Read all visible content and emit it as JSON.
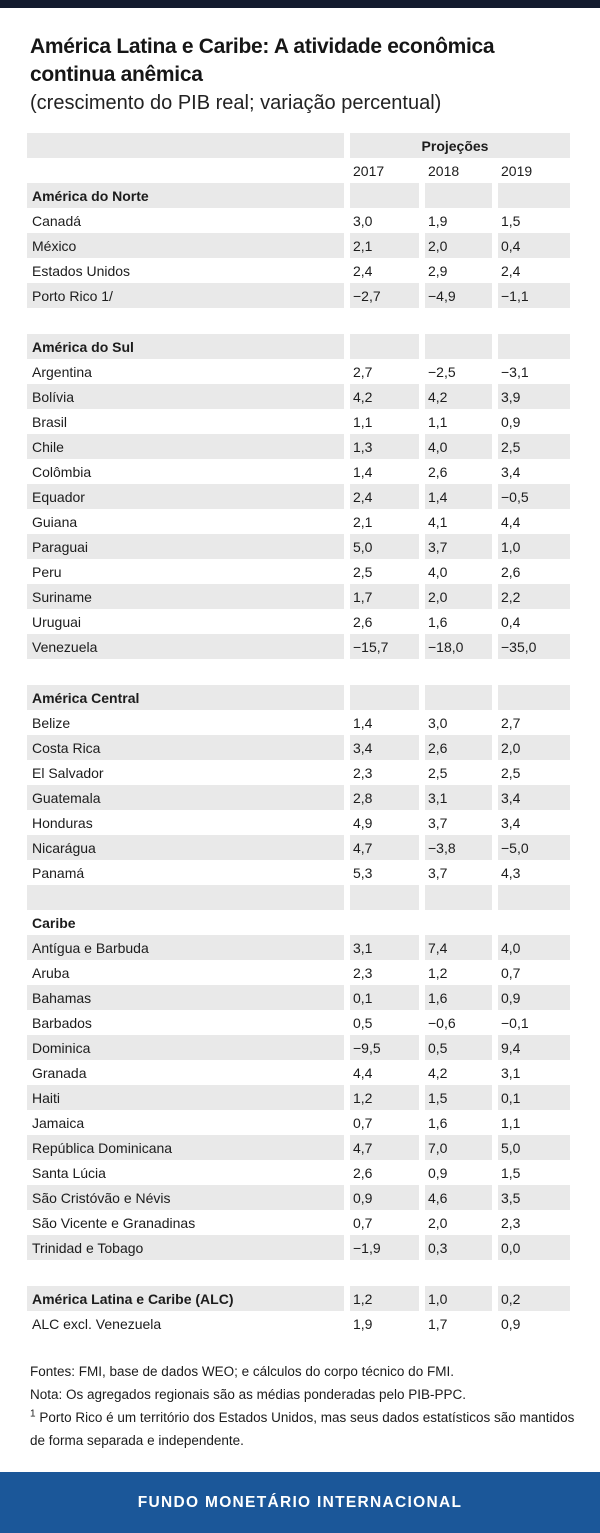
{
  "chart_data": {
    "type": "table",
    "title": "América Latina e Caribe: A atividade econômica continua anêmica",
    "title_lines": [
      "América Latina e Caribe: A atividade econômica",
      "continua anêmica"
    ],
    "subtitle": "(crescimento do PIB real; variação percentual)",
    "column_group_label": "Projeções",
    "columns": [
      "2017",
      "2018",
      "2019"
    ],
    "rows": [
      {
        "type": "section",
        "label": "América do Norte",
        "shade": "gray"
      },
      {
        "type": "row",
        "label": "Canadá",
        "values": [
          "3,0",
          "1,9",
          "1,5"
        ],
        "shade": "white"
      },
      {
        "type": "row",
        "label": "México",
        "values": [
          "2,1",
          "2,0",
          "0,4"
        ],
        "shade": "gray"
      },
      {
        "type": "row",
        "label": "Estados Unidos",
        "values": [
          "2,4",
          "2,9",
          "2,4"
        ],
        "shade": "white"
      },
      {
        "type": "row",
        "label": "Porto Rico 1/",
        "values": [
          "−2,7",
          "−4,9",
          "−1,1"
        ],
        "shade": "gray"
      },
      {
        "type": "spacer",
        "shade": "white"
      },
      {
        "type": "section",
        "label": "América do Sul",
        "shade": "gray"
      },
      {
        "type": "row",
        "label": "Argentina",
        "values": [
          "2,7",
          "−2,5",
          "−3,1"
        ],
        "shade": "white"
      },
      {
        "type": "row",
        "label": "Bolívia",
        "values": [
          "4,2",
          "4,2",
          "3,9"
        ],
        "shade": "gray"
      },
      {
        "type": "row",
        "label": "Brasil",
        "values": [
          "1,1",
          "1,1",
          "0,9"
        ],
        "shade": "white"
      },
      {
        "type": "row",
        "label": "Chile",
        "values": [
          "1,3",
          "4,0",
          "2,5"
        ],
        "shade": "gray"
      },
      {
        "type": "row",
        "label": "Colômbia",
        "values": [
          "1,4",
          "2,6",
          "3,4"
        ],
        "shade": "white"
      },
      {
        "type": "row",
        "label": "Equador",
        "values": [
          "2,4",
          "1,4",
          "−0,5"
        ],
        "shade": "gray"
      },
      {
        "type": "row",
        "label": "Guiana",
        "values": [
          "2,1",
          "4,1",
          "4,4"
        ],
        "shade": "white"
      },
      {
        "type": "row",
        "label": "Paraguai",
        "values": [
          "5,0",
          "3,7",
          "1,0"
        ],
        "shade": "gray"
      },
      {
        "type": "row",
        "label": "Peru",
        "values": [
          "2,5",
          "4,0",
          "2,6"
        ],
        "shade": "white"
      },
      {
        "type": "row",
        "label": "Suriname",
        "values": [
          "1,7",
          "2,0",
          "2,2"
        ],
        "shade": "gray"
      },
      {
        "type": "row",
        "label": "Uruguai",
        "values": [
          "2,6",
          "1,6",
          "0,4"
        ],
        "shade": "white"
      },
      {
        "type": "row",
        "label": "Venezuela",
        "values": [
          "−15,7",
          "−18,0",
          "−35,0"
        ],
        "shade": "gray"
      },
      {
        "type": "spacer",
        "shade": "white"
      },
      {
        "type": "section",
        "label": "América Central",
        "shade": "gray"
      },
      {
        "type": "row",
        "label": "Belize",
        "values": [
          "1,4",
          "3,0",
          "2,7"
        ],
        "shade": "white"
      },
      {
        "type": "row",
        "label": "Costa Rica",
        "values": [
          "3,4",
          "2,6",
          "2,0"
        ],
        "shade": "gray"
      },
      {
        "type": "row",
        "label": "El Salvador",
        "values": [
          "2,3",
          "2,5",
          "2,5"
        ],
        "shade": "white"
      },
      {
        "type": "row",
        "label": "Guatemala",
        "values": [
          "2,8",
          "3,1",
          "3,4"
        ],
        "shade": "gray"
      },
      {
        "type": "row",
        "label": "Honduras",
        "values": [
          "4,9",
          "3,7",
          "3,4"
        ],
        "shade": "white"
      },
      {
        "type": "row",
        "label": "Nicarágua",
        "values": [
          "4,7",
          "−3,8",
          "−5,0"
        ],
        "shade": "gray"
      },
      {
        "type": "row",
        "label": "Panamá",
        "values": [
          "5,3",
          "3,7",
          "4,3"
        ],
        "shade": "white"
      },
      {
        "type": "spacer",
        "shade": "gray"
      },
      {
        "type": "section",
        "label": "Caribe",
        "shade": "white"
      },
      {
        "type": "row",
        "label": "Antígua e Barbuda",
        "values": [
          "3,1",
          "7,4",
          "4,0"
        ],
        "shade": "gray"
      },
      {
        "type": "row",
        "label": "Aruba",
        "values": [
          "2,3",
          "1,2",
          "0,7"
        ],
        "shade": "white"
      },
      {
        "type": "row",
        "label": "Bahamas",
        "values": [
          "0,1",
          "1,6",
          "0,9"
        ],
        "shade": "gray"
      },
      {
        "type": "row",
        "label": "Barbados",
        "values": [
          "0,5",
          "−0,6",
          "−0,1"
        ],
        "shade": "white"
      },
      {
        "type": "row",
        "label": "Dominica",
        "values": [
          "−9,5",
          "0,5",
          "9,4"
        ],
        "shade": "gray"
      },
      {
        "type": "row",
        "label": "Granada",
        "values": [
          "4,4",
          "4,2",
          "3,1"
        ],
        "shade": "white"
      },
      {
        "type": "row",
        "label": "Haiti",
        "values": [
          "1,2",
          "1,5",
          "0,1"
        ],
        "shade": "gray"
      },
      {
        "type": "row",
        "label": "Jamaica",
        "values": [
          "0,7",
          "1,6",
          "1,1"
        ],
        "shade": "white"
      },
      {
        "type": "row",
        "label": "República Dominicana",
        "values": [
          "4,7",
          "7,0",
          "5,0"
        ],
        "shade": "gray"
      },
      {
        "type": "row",
        "label": "Santa Lúcia",
        "values": [
          "2,6",
          "0,9",
          "1,5"
        ],
        "shade": "white"
      },
      {
        "type": "row",
        "label": "São Cristóvão e Névis",
        "values": [
          "0,9",
          "4,6",
          "3,5"
        ],
        "shade": "gray"
      },
      {
        "type": "row",
        "label": "São Vicente e Granadinas",
        "values": [
          "0,7",
          "2,0",
          "2,3"
        ],
        "shade": "white"
      },
      {
        "type": "row",
        "label": "Trinidad e Tobago",
        "values": [
          "−1,9",
          "0,3",
          "0,0"
        ],
        "shade": "gray"
      },
      {
        "type": "spacer",
        "shade": "white"
      },
      {
        "type": "row",
        "label": "América Latina e Caribe (ALC)",
        "values": [
          "1,2",
          "1,0",
          "0,2"
        ],
        "shade": "gray",
        "bold": true
      },
      {
        "type": "row",
        "label": "ALC excl. Venezuela",
        "values": [
          "1,9",
          "1,7",
          "0,9"
        ],
        "shade": "white"
      }
    ]
  },
  "notes": {
    "fontes": "Fontes: FMI, base de dados WEO; e cálculos do corpo técnico do FMI.",
    "nota": "Nota: Os agregados regionais são as médias ponderadas pelo PIB-PPC.",
    "footnote_marker": "1",
    "footnote": "Porto Rico é um território dos Estados Unidos, mas seus dados estatísticos são mantidos de forma separada e independente."
  },
  "footer": {
    "org": "FUNDO MONETÁRIO INTERNACIONAL"
  },
  "colors": {
    "top_bar": "#131b2e",
    "row_stripe": "#e9e9e9",
    "footer_blue": "#1b5799",
    "text": "#1c1c1c"
  }
}
